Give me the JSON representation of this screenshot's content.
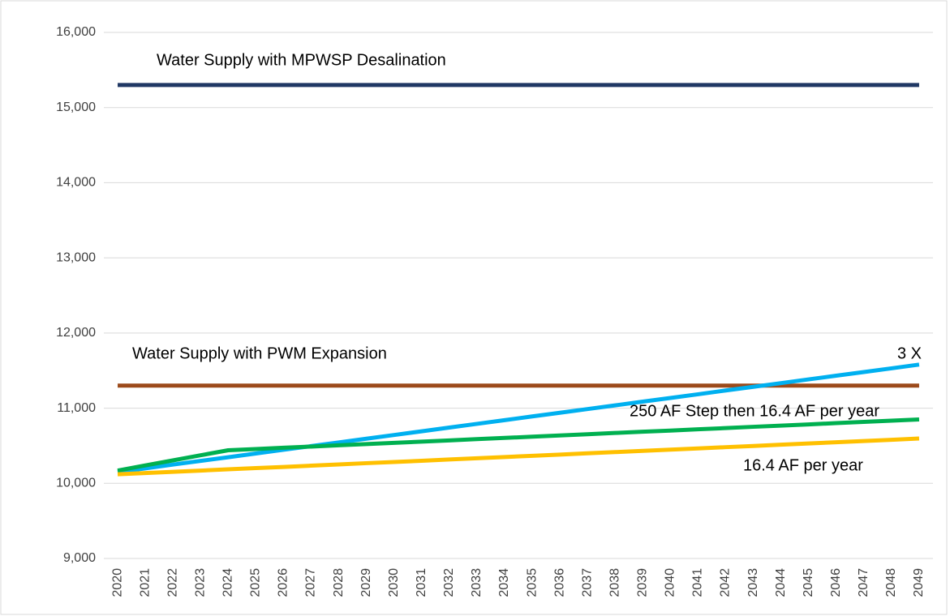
{
  "chart_data": {
    "type": "line",
    "categories": [
      "2020",
      "2021",
      "2022",
      "2023",
      "2024",
      "2025",
      "2026",
      "2027",
      "2028",
      "2029",
      "2030",
      "2031",
      "2032",
      "2033",
      "2034",
      "2035",
      "2036",
      "2037",
      "2038",
      "2039",
      "2040",
      "2041",
      "2042",
      "2043",
      "2044",
      "2045",
      "2046",
      "2047",
      "2048",
      "2049"
    ],
    "series": [
      {
        "color": "#203864",
        "values": [
          15300,
          15300,
          15300,
          15300,
          15300,
          15300,
          15300,
          15300,
          15300,
          15300,
          15300,
          15300,
          15300,
          15300,
          15300,
          15300,
          15300,
          15300,
          15300,
          15300,
          15300,
          15300,
          15300,
          15300,
          15300,
          15300,
          15300,
          15300,
          15300,
          15300
        ]
      },
      {
        "color": "#9c4a1a",
        "values": [
          11300,
          11300,
          11300,
          11300,
          11300,
          11300,
          11300,
          11300,
          11300,
          11300,
          11300,
          11300,
          11300,
          11300,
          11300,
          11300,
          11300,
          11300,
          11300,
          11300,
          11300,
          11300,
          11300,
          11300,
          11300,
          11300,
          11300,
          11300,
          11300,
          11300
        ]
      },
      {
        "color": "#00b0f0",
        "values": [
          10150,
          10199,
          10249,
          10298,
          10347,
          10397,
          10446,
          10495,
          10544,
          10594,
          10643,
          10692,
          10742,
          10791,
          10840,
          10890,
          10939,
          10988,
          11037,
          11087,
          11136,
          11185,
          11235,
          11284,
          11333,
          11383,
          11432,
          11481,
          11530,
          11580
        ]
      },
      {
        "color": "#00b050",
        "values": [
          10170,
          10238,
          10305,
          10373,
          10440,
          10456,
          10473,
          10489,
          10506,
          10522,
          10538,
          10555,
          10571,
          10588,
          10604,
          10620,
          10637,
          10653,
          10670,
          10686,
          10702,
          10719,
          10735,
          10752,
          10768,
          10784,
          10801,
          10817,
          10834,
          10850
        ]
      },
      {
        "color": "#ffc000",
        "values": [
          10120,
          10136,
          10153,
          10169,
          10186,
          10202,
          10218,
          10235,
          10251,
          10268,
          10284,
          10300,
          10317,
          10333,
          10350,
          10366,
          10382,
          10399,
          10415,
          10432,
          10448,
          10464,
          10481,
          10497,
          10514,
          10530,
          10546,
          10563,
          10579,
          10596
        ]
      }
    ],
    "annotations": [
      "Water Supply with MPWSP Desalination",
      "Water Supply with PWM Expansion",
      "3 X",
      "250 AF Step then 16.4 AF per year",
      "16.4 AF per year"
    ],
    "ylim": [
      9000,
      16000
    ],
    "yticks": [
      {
        "value": 9000,
        "label": "9,000"
      },
      {
        "value": 10000,
        "label": "10,000"
      },
      {
        "value": 11000,
        "label": "11,000"
      },
      {
        "value": 12000,
        "label": "12,000"
      },
      {
        "value": 13000,
        "label": "13,000"
      },
      {
        "value": 14000,
        "label": "14,000"
      },
      {
        "value": 15000,
        "label": "15,000"
      },
      {
        "value": 16000,
        "label": "16,000"
      }
    ],
    "grid": true
  }
}
